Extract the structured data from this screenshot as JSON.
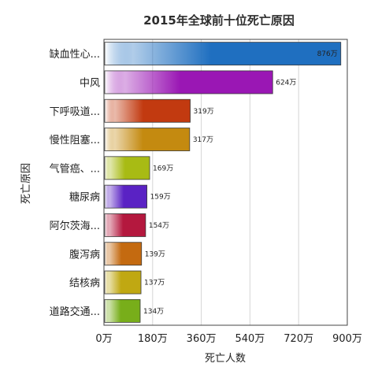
{
  "chart_data": {
    "type": "bar",
    "orientation": "horizontal",
    "title": "2015年全球前十位死亡原因",
    "xlabel": "死亡人数",
    "ylabel": "死亡原因",
    "xlim": [
      0,
      900
    ],
    "x_ticks": [
      0,
      180,
      360,
      540,
      720,
      900
    ],
    "x_tick_labels": [
      "0万",
      "180万",
      "360万",
      "540万",
      "720万",
      "900万"
    ],
    "grid": "vertical",
    "categories": [
      "缺血性心...",
      "中风",
      "下呼吸道...",
      "慢性阻塞...",
      "气管癌、...",
      "糖尿病",
      "阿尔茨海...",
      "腹泻病",
      "结核病",
      "道路交通..."
    ],
    "values": [
      876,
      624,
      319,
      317,
      169,
      159,
      154,
      139,
      137,
      134
    ],
    "value_labels": [
      "876万",
      "624万",
      "319万",
      "317万",
      "169万",
      "159万",
      "154万",
      "139万",
      "137万",
      "134万"
    ],
    "colors": [
      "#1f6fc0",
      "#9a17b4",
      "#c23a10",
      "#c48a10",
      "#a8bb14",
      "#5a22c4",
      "#b4183e",
      "#c46a10",
      "#c0a812",
      "#78ae1a"
    ]
  }
}
